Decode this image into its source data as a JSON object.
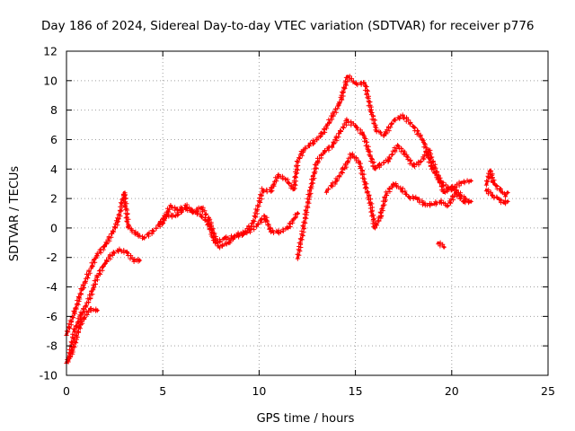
{
  "chart_data": {
    "type": "scatter",
    "title": "Day 186 of 2024, Sidereal Day-to-day VTEC variation (SDTVAR) for receiver p776",
    "xlabel": "GPS time / hours",
    "ylabel": "SDTVAR / TECUs",
    "xlim": [
      0,
      25
    ],
    "ylim": [
      -10,
      12
    ],
    "xticks": [
      0,
      5,
      10,
      15,
      20,
      25
    ],
    "yticks": [
      -10,
      -8,
      -6,
      -4,
      -2,
      0,
      2,
      4,
      6,
      8,
      10,
      12
    ],
    "grid": true,
    "marker": "plus",
    "color": "#ff0000",
    "series": [
      {
        "name": "track-1",
        "points": [
          [
            0.0,
            -7.2
          ],
          [
            0.4,
            -5.8
          ],
          [
            0.8,
            -4.2
          ],
          [
            1.3,
            -2.6
          ],
          [
            1.6,
            -1.8
          ],
          [
            2.0,
            -1.2
          ],
          [
            2.4,
            -0.3
          ],
          [
            2.7,
            0.6
          ],
          [
            3.0,
            2.4
          ],
          [
            3.2,
            0.1
          ],
          [
            3.6,
            -0.4
          ],
          [
            4.0,
            -0.7
          ],
          [
            4.5,
            -0.2
          ],
          [
            5.0,
            0.4
          ],
          [
            5.4,
            1.5
          ],
          [
            5.8,
            1.2
          ],
          [
            6.2,
            1.5
          ],
          [
            6.6,
            1.1
          ],
          [
            7.0,
            1.4
          ],
          [
            7.4,
            0.6
          ],
          [
            7.8,
            -1.0
          ],
          [
            8.2,
            -0.7
          ],
          [
            8.7,
            -0.6
          ],
          [
            9.2,
            -0.4
          ],
          [
            9.7,
            0.4
          ],
          [
            10.2,
            2.6
          ],
          [
            10.6,
            2.5
          ],
          [
            11.0,
            3.6
          ],
          [
            11.4,
            3.3
          ],
          [
            11.8,
            2.6
          ],
          [
            12.0,
            4.5
          ],
          [
            12.3,
            5.3
          ],
          [
            12.8,
            5.8
          ],
          [
            13.3,
            6.4
          ],
          [
            13.8,
            7.6
          ],
          [
            14.2,
            8.5
          ],
          [
            14.6,
            10.3
          ],
          [
            15.0,
            9.8
          ],
          [
            15.5,
            9.8
          ],
          [
            15.8,
            8.0
          ],
          [
            16.1,
            6.6
          ],
          [
            16.5,
            6.3
          ],
          [
            17.0,
            7.3
          ],
          [
            17.5,
            7.6
          ],
          [
            18.0,
            6.9
          ],
          [
            18.5,
            6.0
          ],
          [
            19.0,
            4.0
          ],
          [
            19.5,
            3.0
          ],
          [
            20.0,
            2.6
          ],
          [
            20.5,
            3.1
          ],
          [
            21.0,
            3.2
          ]
        ]
      },
      {
        "name": "track-2",
        "points": [
          [
            0.1,
            -9.0
          ],
          [
            0.4,
            -7.0
          ],
          [
            0.8,
            -5.8
          ],
          [
            1.2,
            -4.8
          ],
          [
            1.6,
            -3.3
          ],
          [
            2.0,
            -2.4
          ],
          [
            2.4,
            -1.7
          ],
          [
            2.8,
            -1.5
          ],
          [
            3.1,
            -1.6
          ],
          [
            3.5,
            -2.2
          ],
          [
            3.8,
            -2.2
          ]
        ]
      },
      {
        "name": "track-3",
        "points": [
          [
            0.0,
            -9.1
          ],
          [
            0.3,
            -8.4
          ],
          [
            0.7,
            -6.6
          ],
          [
            1.2,
            -5.5
          ],
          [
            1.6,
            -5.6
          ]
        ]
      },
      {
        "name": "track-4",
        "points": [
          [
            4.8,
            0.3
          ],
          [
            5.2,
            0.9
          ],
          [
            5.6,
            0.8
          ],
          [
            6.2,
            1.3
          ],
          [
            6.8,
            1.0
          ],
          [
            7.3,
            0.5
          ],
          [
            7.6,
            -0.6
          ],
          [
            7.9,
            -1.3
          ],
          [
            8.4,
            -1.0
          ],
          [
            8.9,
            -0.4
          ],
          [
            9.4,
            -0.3
          ],
          [
            9.9,
            0.2
          ],
          [
            10.3,
            0.8
          ],
          [
            10.6,
            -0.2
          ],
          [
            11.0,
            -0.3
          ],
          [
            11.5,
            0.0
          ],
          [
            12.0,
            1.0
          ]
        ]
      },
      {
        "name": "track-5",
        "points": [
          [
            12.0,
            -2.0
          ],
          [
            12.3,
            0.0
          ],
          [
            12.6,
            2.2
          ],
          [
            13.0,
            4.5
          ],
          [
            13.4,
            5.2
          ],
          [
            13.8,
            5.6
          ],
          [
            14.2,
            6.5
          ],
          [
            14.6,
            7.3
          ],
          [
            15.0,
            6.9
          ],
          [
            15.4,
            6.4
          ],
          [
            15.7,
            5.2
          ],
          [
            16.0,
            4.0
          ],
          [
            16.3,
            4.3
          ],
          [
            16.7,
            4.6
          ],
          [
            17.2,
            5.6
          ],
          [
            17.6,
            5.0
          ],
          [
            18.0,
            4.2
          ],
          [
            18.4,
            4.5
          ],
          [
            18.8,
            5.3
          ],
          [
            19.2,
            3.8
          ],
          [
            19.6,
            2.4
          ],
          [
            20.0,
            2.8
          ],
          [
            20.5,
            2.2
          ],
          [
            20.9,
            1.8
          ]
        ]
      },
      {
        "name": "track-6",
        "points": [
          [
            13.5,
            2.5
          ],
          [
            14.0,
            3.2
          ],
          [
            14.4,
            4.0
          ],
          [
            14.8,
            5.0
          ],
          [
            15.2,
            4.5
          ],
          [
            15.5,
            3.0
          ],
          [
            15.8,
            1.6
          ],
          [
            16.0,
            0.0
          ],
          [
            16.3,
            0.8
          ],
          [
            16.6,
            2.3
          ],
          [
            17.0,
            3.0
          ],
          [
            17.4,
            2.6
          ],
          [
            17.8,
            2.1
          ],
          [
            18.2,
            2.0
          ],
          [
            18.6,
            1.6
          ],
          [
            19.0,
            1.6
          ],
          [
            19.4,
            1.8
          ],
          [
            19.8,
            1.5
          ],
          [
            20.2,
            2.4
          ],
          [
            20.6,
            1.8
          ],
          [
            21.0,
            1.8
          ]
        ]
      },
      {
        "name": "track-7",
        "points": [
          [
            19.3,
            -1.0
          ],
          [
            19.6,
            -1.3
          ]
        ]
      },
      {
        "name": "track-8",
        "points": [
          [
            21.8,
            3.0
          ],
          [
            22.0,
            3.9
          ],
          [
            22.2,
            3.0
          ],
          [
            22.5,
            2.6
          ],
          [
            22.8,
            2.2
          ],
          [
            22.9,
            2.4
          ]
        ]
      },
      {
        "name": "track-9",
        "points": [
          [
            21.8,
            2.6
          ],
          [
            22.1,
            2.2
          ],
          [
            22.4,
            2.0
          ],
          [
            22.7,
            1.7
          ],
          [
            22.9,
            1.8
          ]
        ]
      }
    ]
  }
}
